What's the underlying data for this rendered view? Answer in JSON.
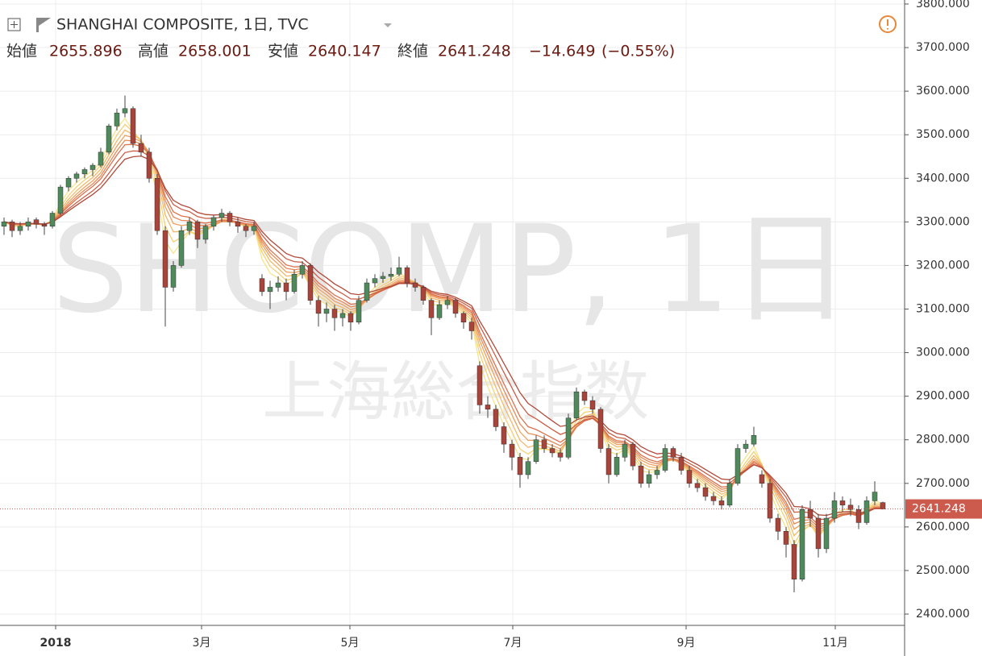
{
  "chart_data": {
    "type": "candlestick",
    "title": "SHANGHAI COMPOSITE, 1日, TVC",
    "watermark": "SHCOMP, 1日",
    "watermark_sub": "上海総合指数",
    "ohlc_labels": [
      "始値",
      "高値",
      "安値",
      "終値"
    ],
    "change": {
      "value": -14.649,
      "label": "−14.649"
    },
    "change_pct": {
      "value": -0.55,
      "label": "(−0.55%)"
    },
    "up_color": "#4f8a5c",
    "down_color": "#a8443a",
    "ribbon": {
      "periods": [
        3,
        4,
        5,
        6,
        7,
        8,
        10,
        12
      ],
      "colors": [
        "#f5e58a",
        "#f5d077",
        "#f2b96a",
        "#eea160",
        "#e78a57",
        "#dc734f",
        "#cb5e46",
        "#b24a3a"
      ]
    },
    "grid": true,
    "xlim": [
      -0.5,
      111.7
    ],
    "ylim": [
      2374.1,
      3809.2
    ],
    "xticks": [
      {
        "value": 6.4,
        "label": "2018"
      },
      {
        "value": 24.5,
        "label": "3月"
      },
      {
        "value": 42.9,
        "label": "5月"
      },
      {
        "value": 63.1,
        "label": "7月"
      },
      {
        "value": 84.6,
        "label": "9月"
      },
      {
        "value": 103.1,
        "label": "11月"
      }
    ],
    "yticks": [
      {
        "value": 2400,
        "label": "2400.000"
      },
      {
        "value": 2500,
        "label": "2500.000"
      },
      {
        "value": 2600,
        "label": "2600.000"
      },
      {
        "value": 2700,
        "label": "2700.000"
      },
      {
        "value": 2800,
        "label": "2800.000"
      },
      {
        "value": 2900,
        "label": "2900.000"
      },
      {
        "value": 3000,
        "label": "3000.000"
      },
      {
        "value": 3100,
        "label": "3100.000"
      },
      {
        "value": 3200,
        "label": "3200.000"
      },
      {
        "value": 3300,
        "label": "3300.000"
      },
      {
        "value": 3400,
        "label": "3400.000"
      },
      {
        "value": 3500,
        "label": "3500.000"
      },
      {
        "value": 3600,
        "label": "3600.000"
      },
      {
        "value": 3700,
        "label": "3700.000"
      },
      {
        "value": 3800,
        "label": "3800.000"
      }
    ],
    "candles": [
      [
        3290,
        3310,
        3270,
        3300
      ],
      [
        3300,
        3305,
        3265,
        3280
      ],
      [
        3280,
        3300,
        3270,
        3290
      ],
      [
        3290,
        3310,
        3280,
        3300
      ],
      [
        3305,
        3310,
        3285,
        3295
      ],
      [
        3295,
        3300,
        3270,
        3290
      ],
      [
        3290,
        3325,
        3285,
        3320
      ],
      [
        3320,
        3385,
        3315,
        3380
      ],
      [
        3380,
        3405,
        3370,
        3400
      ],
      [
        3400,
        3415,
        3390,
        3410
      ],
      [
        3410,
        3425,
        3400,
        3420
      ],
      [
        3420,
        3435,
        3405,
        3430
      ],
      [
        3430,
        3470,
        3425,
        3460
      ],
      [
        3460,
        3525,
        3455,
        3520
      ],
      [
        3520,
        3560,
        3510,
        3550
      ],
      [
        3550,
        3590,
        3540,
        3560
      ],
      [
        3560,
        3565,
        3470,
        3480
      ],
      [
        3480,
        3500,
        3450,
        3460
      ],
      [
        3460,
        3470,
        3390,
        3400
      ],
      [
        3400,
        3410,
        3270,
        3280
      ],
      [
        3280,
        3290,
        3060,
        3150
      ],
      [
        3150,
        3210,
        3140,
        3200
      ],
      [
        3200,
        3290,
        3195,
        3280
      ],
      [
        3280,
        3310,
        3270,
        3300
      ],
      [
        3300,
        3305,
        3240,
        3260
      ],
      [
        3260,
        3295,
        3250,
        3290
      ],
      [
        3290,
        3315,
        3280,
        3310
      ],
      [
        3310,
        3330,
        3300,
        3320
      ],
      [
        3320,
        3325,
        3290,
        3300
      ],
      [
        3300,
        3310,
        3275,
        3290
      ],
      [
        3290,
        3295,
        3265,
        3280
      ],
      [
        3280,
        3300,
        3270,
        3290
      ],
      [
        3170,
        3180,
        3130,
        3140
      ],
      [
        3140,
        3165,
        3100,
        3150
      ],
      [
        3150,
        3175,
        3140,
        3160
      ],
      [
        3160,
        3170,
        3120,
        3140
      ],
      [
        3140,
        3190,
        3135,
        3180
      ],
      [
        3180,
        3210,
        3170,
        3200
      ],
      [
        3200,
        3205,
        3110,
        3120
      ],
      [
        3120,
        3130,
        3060,
        3090
      ],
      [
        3090,
        3115,
        3070,
        3100
      ],
      [
        3100,
        3110,
        3050,
        3080
      ],
      [
        3080,
        3100,
        3060,
        3090
      ],
      [
        3090,
        3095,
        3050,
        3070
      ],
      [
        3070,
        3130,
        3065,
        3120
      ],
      [
        3120,
        3170,
        3115,
        3160
      ],
      [
        3160,
        3180,
        3150,
        3170
      ],
      [
        3170,
        3185,
        3160,
        3175
      ],
      [
        3175,
        3195,
        3165,
        3180
      ],
      [
        3180,
        3220,
        3175,
        3195
      ],
      [
        3195,
        3200,
        3150,
        3160
      ],
      [
        3160,
        3170,
        3140,
        3150
      ],
      [
        3150,
        3155,
        3110,
        3120
      ],
      [
        3120,
        3125,
        3040,
        3080
      ],
      [
        3080,
        3120,
        3075,
        3110
      ],
      [
        3110,
        3130,
        3100,
        3120
      ],
      [
        3120,
        3125,
        3080,
        3090
      ],
      [
        3090,
        3095,
        3055,
        3070
      ],
      [
        3070,
        3080,
        3030,
        3050
      ],
      [
        2970,
        2980,
        2860,
        2880
      ],
      [
        2880,
        2900,
        2850,
        2870
      ],
      [
        2870,
        2880,
        2820,
        2830
      ],
      [
        2830,
        2840,
        2770,
        2790
      ],
      [
        2790,
        2800,
        2730,
        2760
      ],
      [
        2760,
        2770,
        2690,
        2720
      ],
      [
        2720,
        2760,
        2710,
        2750
      ],
      [
        2750,
        2810,
        2745,
        2800
      ],
      [
        2800,
        2810,
        2770,
        2780
      ],
      [
        2780,
        2790,
        2760,
        2770
      ],
      [
        2770,
        2780,
        2750,
        2760
      ],
      [
        2760,
        2860,
        2755,
        2850
      ],
      [
        2850,
        2920,
        2845,
        2910
      ],
      [
        2910,
        2915,
        2880,
        2890
      ],
      [
        2890,
        2900,
        2860,
        2870
      ],
      [
        2870,
        2875,
        2770,
        2780
      ],
      [
        2780,
        2790,
        2700,
        2720
      ],
      [
        2720,
        2770,
        2715,
        2760
      ],
      [
        2760,
        2800,
        2750,
        2790
      ],
      [
        2790,
        2795,
        2730,
        2740
      ],
      [
        2740,
        2750,
        2690,
        2700
      ],
      [
        2700,
        2730,
        2690,
        2720
      ],
      [
        2720,
        2740,
        2710,
        2730
      ],
      [
        2730,
        2790,
        2725,
        2780
      ],
      [
        2780,
        2785,
        2750,
        2760
      ],
      [
        2760,
        2770,
        2720,
        2730
      ],
      [
        2730,
        2740,
        2690,
        2700
      ],
      [
        2700,
        2710,
        2680,
        2690
      ],
      [
        2690,
        2700,
        2660,
        2670
      ],
      [
        2670,
        2680,
        2650,
        2660
      ],
      [
        2660,
        2670,
        2640,
        2650
      ],
      [
        2650,
        2710,
        2645,
        2700
      ],
      [
        2700,
        2790,
        2695,
        2780
      ],
      [
        2780,
        2800,
        2770,
        2790
      ],
      [
        2790,
        2830,
        2785,
        2810
      ],
      [
        2720,
        2730,
        2690,
        2700
      ],
      [
        2700,
        2710,
        2610,
        2620
      ],
      [
        2620,
        2630,
        2570,
        2590
      ],
      [
        2590,
        2600,
        2530,
        2560
      ],
      [
        2560,
        2570,
        2450,
        2480
      ],
      [
        2480,
        2650,
        2475,
        2640
      ],
      [
        2640,
        2660,
        2600,
        2620
      ],
      [
        2620,
        2630,
        2530,
        2550
      ],
      [
        2550,
        2630,
        2540,
        2620
      ],
      [
        2620,
        2680,
        2610,
        2660
      ],
      [
        2660,
        2670,
        2635,
        2650
      ],
      [
        2650,
        2665,
        2625,
        2640
      ],
      [
        2640,
        2650,
        2595,
        2610
      ],
      [
        2610,
        2670,
        2605,
        2660
      ],
      [
        2660,
        2705,
        2650,
        2680
      ],
      [
        2655.896,
        2658.001,
        2640.147,
        2641.248
      ]
    ]
  }
}
